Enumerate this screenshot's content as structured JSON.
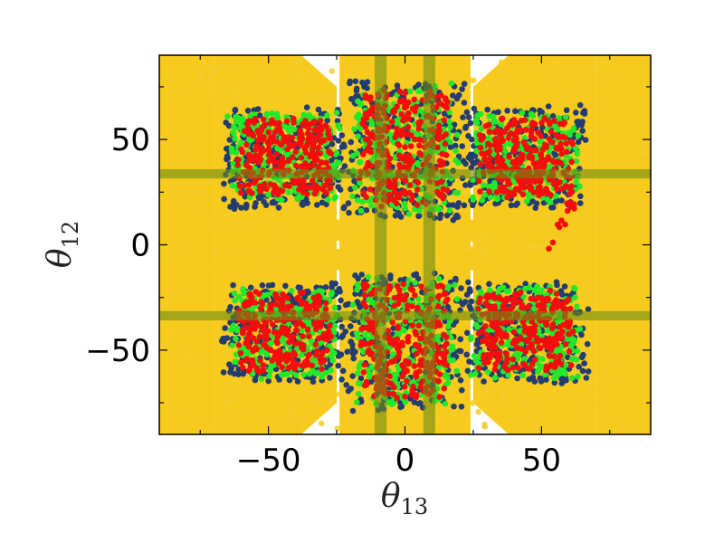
{
  "chart_data": {
    "type": "scatter",
    "title": "",
    "xlabel_symbol": "θ",
    "xlabel_sub": "13",
    "ylabel_symbol": "θ",
    "ylabel_sub": "12",
    "xlim": [
      -90,
      90
    ],
    "ylim": [
      -90,
      90
    ],
    "xticks": [
      -50,
      0,
      50
    ],
    "yticks": [
      -50,
      0,
      50
    ],
    "xtick_labels": [
      "−50",
      "0",
      "50"
    ],
    "ytick_labels": [
      "−50",
      "0",
      "50"
    ],
    "grid": false,
    "legend": "none",
    "background_region_color": "#F7CB1E",
    "colors": {
      "yellow": "#F6CC2A",
      "navy": "#233C72",
      "green": "#22E82A",
      "red": "#F50D0D",
      "band_fill": "#6E8C14"
    },
    "bands": {
      "vertical_x": [
        -8.9,
        8.9
      ],
      "horizontal_y": [
        -33.7,
        33.7
      ],
      "half_width": 2.2,
      "opacity": 0.6
    },
    "clusters": [
      {
        "shape": "box",
        "x": [
          -66,
          -22
        ],
        "y": [
          18,
          65
        ]
      },
      {
        "shape": "box",
        "x": [
          -66,
          -22
        ],
        "y": [
          -65,
          -18
        ]
      },
      {
        "shape": "box",
        "x": [
          22,
          66
        ],
        "y": [
          18,
          65
        ]
      },
      {
        "shape": "box",
        "x": [
          22,
          66
        ],
        "y": [
          -65,
          -18
        ]
      },
      {
        "shape": "box",
        "x": [
          -21,
          21
        ],
        "y": [
          13,
          78
        ]
      },
      {
        "shape": "box",
        "x": [
          -21,
          21
        ],
        "y": [
          -78,
          -13
        ]
      }
    ],
    "series": [
      {
        "color_key": "yellow",
        "role": "background scatter covering most of the plane; sparse white wedges near |θ13|≈25–35 and near θ12≈0"
      },
      {
        "color_key": "navy",
        "role": "outer shell of each cluster"
      },
      {
        "color_key": "green",
        "role": "middle layer of each cluster"
      },
      {
        "color_key": "red",
        "role": "inner core of each cluster"
      }
    ]
  }
}
